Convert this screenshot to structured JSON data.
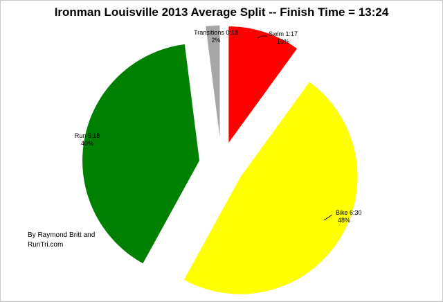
{
  "chart_data": {
    "type": "pie",
    "title": "Ironman Louisville 2013 Average Split -- Finish Time = 13:24",
    "slices": [
      {
        "name": "Swim",
        "time": "1:17",
        "percent": 10,
        "label": "Swim 1:17",
        "pct_label": "10%",
        "color": "#ff0000"
      },
      {
        "name": "Bike",
        "time": "6:30",
        "percent": 48,
        "label": "Bike 6:30",
        "pct_label": "48%",
        "color": "#ffff00"
      },
      {
        "name": "Run",
        "time": "5:18",
        "percent": 40,
        "label": "Run 5:18",
        "pct_label": "40%",
        "color": "#008000"
      },
      {
        "name": "Transitions",
        "time": "0:18",
        "percent": 2,
        "label": "Transitions 0:18",
        "pct_label": "2%",
        "color": "#a6a6a6"
      }
    ],
    "exploded": true,
    "legend": "none"
  },
  "credit": {
    "line1": "By Raymond Britt and",
    "line2": "RunTri.com"
  }
}
